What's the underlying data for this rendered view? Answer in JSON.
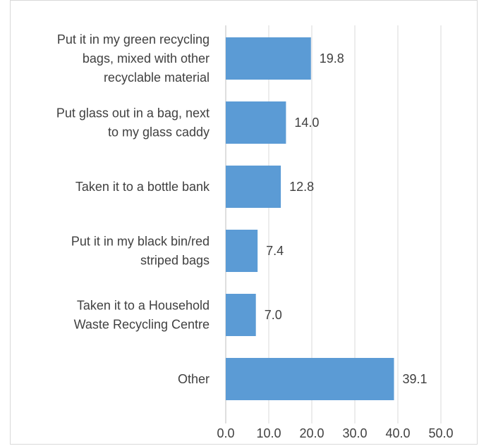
{
  "chart_data": {
    "type": "bar",
    "orientation": "horizontal",
    "title": "",
    "xlabel": "",
    "ylabel": "",
    "categories": [
      [
        "Put it in my green recycling",
        "bags, mixed with other",
        "recyclable material"
      ],
      [
        "Put glass out in a bag, next",
        "to my glass caddy"
      ],
      [
        "Taken it to a bottle bank"
      ],
      [
        "Put it in my black bin/red",
        "striped bags"
      ],
      [
        "Taken it to a Household",
        "Waste Recycling Centre"
      ],
      [
        "Other"
      ]
    ],
    "values": [
      19.8,
      14.0,
      12.8,
      7.4,
      7.0,
      39.1
    ],
    "value_labels": [
      "19.8",
      "14.0",
      "12.8",
      "7.4",
      "7.0",
      "39.1"
    ],
    "xlim": [
      0,
      50
    ],
    "xticks": [
      0,
      10,
      20,
      30,
      40,
      50
    ],
    "xtick_labels": [
      "0.0",
      "10.0",
      "20.0",
      "30.0",
      "40.0",
      "50.0"
    ],
    "grid": true,
    "legend": "none",
    "bar_color": "#5b9bd5"
  }
}
